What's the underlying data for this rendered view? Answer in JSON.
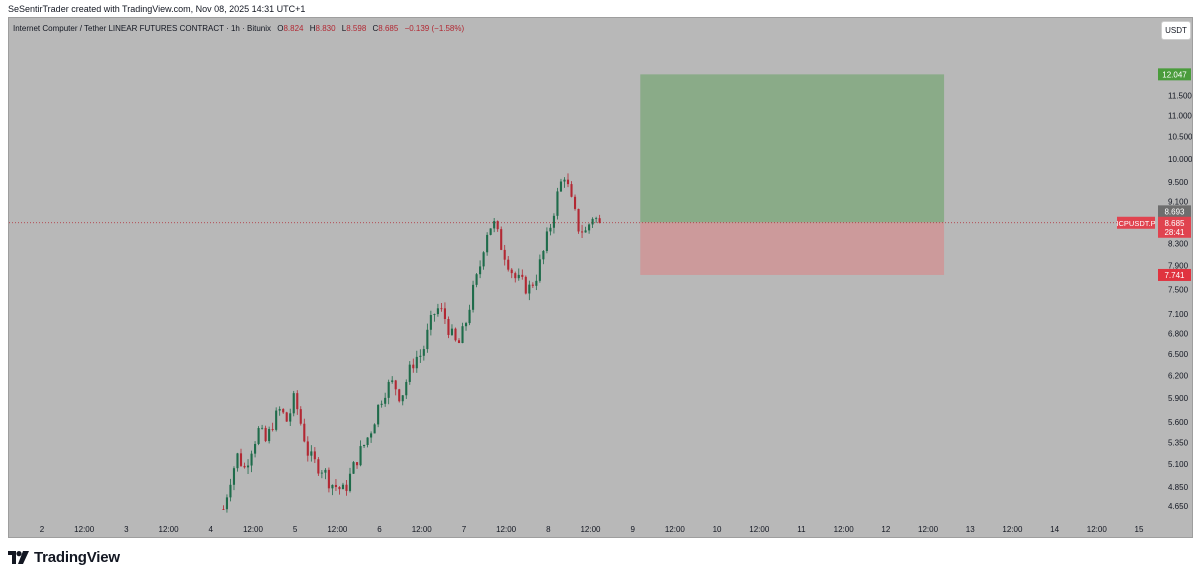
{
  "header": {
    "credit": "SeSentirTrader created with TradingView.com, Nov 08, 2025 14:31 UTC+1"
  },
  "legend": {
    "symbol": "Internet Computer / Tether LINEAR FUTURES CONTRACT · 1h · Bitunix",
    "open_label": "O",
    "open": "8.824",
    "high_label": "H",
    "high": "8.830",
    "low_label": "L",
    "low": "8.598",
    "close_label": "C",
    "close": "8.685",
    "change": "−0.139 (−1.58%)"
  },
  "unit_button": "USDT",
  "footer": {
    "brand": "TradingView"
  },
  "colors": {
    "up": "#1e6b4a",
    "down": "#b22833",
    "profit_zone": "#8aab88",
    "loss_zone": "#cc9a9b",
    "background": "#b8b8b8",
    "target_tag": "#4a9c3c",
    "stop_tag": "#e0333f",
    "price_tag": "#e0434f",
    "entry_tag": "#6e6e6e"
  },
  "chart_data": {
    "type": "candlestick",
    "symbol": "ICPUSDT.P",
    "timeframe": "1h",
    "y_scale": "log",
    "ylim": [
      4.5,
      12.6
    ],
    "y_ticks": [
      "4.650",
      "4.850",
      "5.100",
      "5.350",
      "5.600",
      "5.900",
      "6.200",
      "6.500",
      "6.800",
      "7.100",
      "7.500",
      "7.900",
      "8.300",
      "9.100",
      "9.500",
      "10.000",
      "10.500",
      "11.000",
      "11.500"
    ],
    "x_ticks": [
      {
        "label": "2",
        "day": 2.0
      },
      {
        "label": "12:00",
        "day": 2.5
      },
      {
        "label": "3",
        "day": 3.0
      },
      {
        "label": "12:00",
        "day": 3.5
      },
      {
        "label": "4",
        "day": 4.0
      },
      {
        "label": "12:00",
        "day": 4.5
      },
      {
        "label": "5",
        "day": 5.0
      },
      {
        "label": "12:00",
        "day": 5.5
      },
      {
        "label": "6",
        "day": 6.0
      },
      {
        "label": "12:00",
        "day": 6.5
      },
      {
        "label": "7",
        "day": 7.0
      },
      {
        "label": "12:00",
        "day": 7.5
      },
      {
        "label": "8",
        "day": 8.0
      },
      {
        "label": "12:00",
        "day": 8.5
      },
      {
        "label": "9",
        "day": 9.0
      },
      {
        "label": "12:00",
        "day": 9.5
      },
      {
        "label": "10",
        "day": 10.0
      },
      {
        "label": "12:00",
        "day": 10.5
      },
      {
        "label": "11",
        "day": 11.0
      },
      {
        "label": "12:00",
        "day": 11.5
      },
      {
        "label": "12",
        "day": 12.0
      },
      {
        "label": "12:00",
        "day": 12.5
      },
      {
        "label": "13",
        "day": 13.0
      },
      {
        "label": "12:00",
        "day": 13.5
      },
      {
        "label": "14",
        "day": 14.0
      },
      {
        "label": "12:00",
        "day": 14.5
      },
      {
        "label": "15",
        "day": 15.0
      }
    ],
    "first_candle_day": 4.15,
    "candle_interval_days": 0.041667,
    "price_path": [
      4.62,
      4.95,
      5.2,
      5.05,
      5.3,
      5.5,
      5.35,
      5.6,
      5.75,
      5.6,
      5.9,
      5.55,
      5.2,
      5.1,
      5.05,
      4.9,
      4.85,
      4.8,
      5.0,
      5.2,
      5.35,
      5.55,
      5.85,
      6.05,
      6.1,
      5.9,
      6.2,
      6.45,
      6.5,
      6.9,
      7.2,
      7.1,
      6.8,
      6.6,
      6.9,
      7.4,
      7.8,
      8.5,
      8.7,
      8.3,
      8.0,
      7.7,
      7.6,
      7.5,
      7.7,
      8.1,
      8.6,
      9.2,
      9.7,
      9.1,
      8.6,
      8.5,
      8.82,
      8.685
    ],
    "position": {
      "start_day": 9.09,
      "end_day": 12.69,
      "target": 12.047,
      "entry": 8.693,
      "stop": 7.741
    },
    "price_labels": {
      "target": "12.047",
      "entry": "8.693",
      "stop": "7.741",
      "last": "8.685",
      "countdown": "28:41"
    }
  }
}
